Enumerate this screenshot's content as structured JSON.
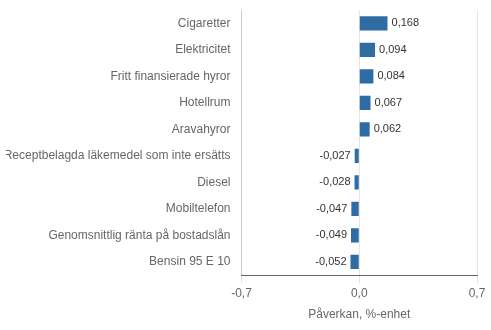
{
  "chart_data": {
    "type": "bar",
    "orientation": "horizontal",
    "categories": [
      "Bensin 95 E 10",
      "Genomsnittlig ränta på bostadslån",
      "Mobiltelefon",
      "Diesel",
      "Receptbelagda läkemedel som inte ersätts",
      "Aravahyror",
      "Hotellrum",
      "Fritt finansierade hyror",
      "Elektricitet",
      "Cigaretter"
    ],
    "values": [
      -0.052,
      -0.049,
      -0.047,
      -0.028,
      -0.027,
      0.062,
      0.067,
      0.084,
      0.094,
      0.168
    ],
    "value_labels": [
      "-0,052",
      "-0,049",
      "-0,047",
      "-0,028",
      "-0,027",
      "0,062",
      "0,067",
      "0,084",
      "0,094",
      "0,168"
    ],
    "data_labels": true,
    "color": "#2e6da4",
    "xlabel": "Påverkan, %-enhet",
    "xlim": [
      -0.7,
      0.7
    ],
    "xticks": [
      {
        "value": -0.7,
        "label": "-0,7"
      },
      {
        "value": 0.0,
        "label": "0,0"
      },
      {
        "value": 0.7,
        "label": "0,7"
      }
    ],
    "grid": true
  }
}
